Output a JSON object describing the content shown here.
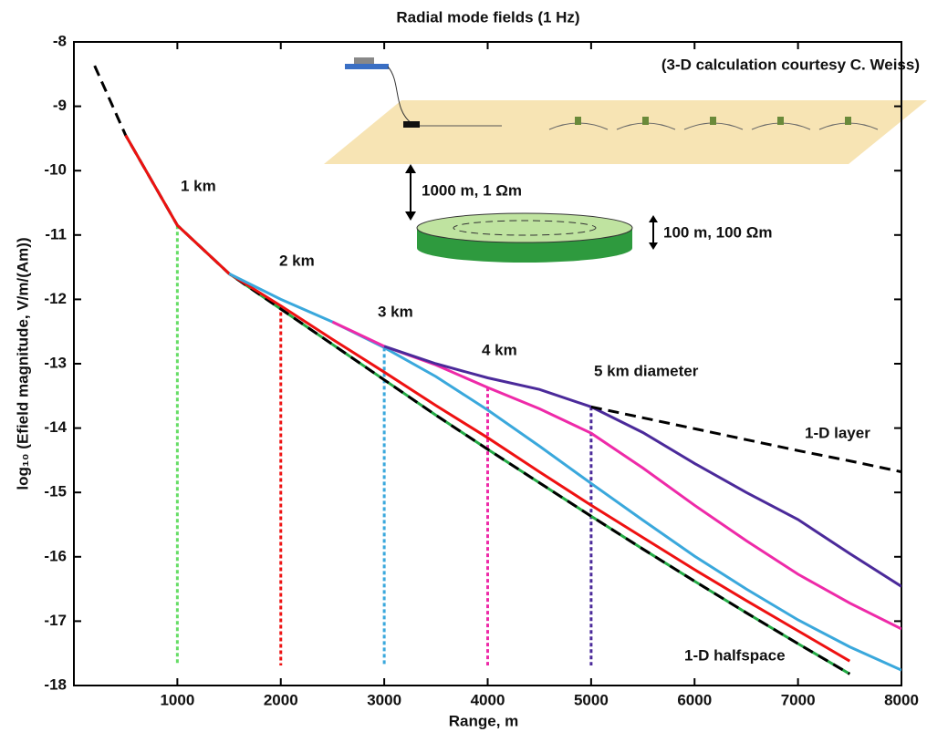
{
  "chart_data": {
    "type": "line",
    "title": "Radial mode fields (1 Hz)",
    "annotation": "(3-D calculation courtesy C. Weiss)",
    "xlabel": "Range, m",
    "ylabel": "log₁₀ (Efield magnitude, V/m/(Am))",
    "diagram_labels": [
      "1000 m, 1 Ωm",
      "100 m, 100 Ωm"
    ],
    "x": [
      200,
      500,
      1000,
      1500,
      2000,
      2500,
      3000,
      3500,
      4000,
      4500,
      5000,
      5500,
      6000,
      6500,
      7000,
      7500,
      8000
    ],
    "series": [
      {
        "name": "1 km",
        "color": "#22aa44",
        "dashed": false,
        "values": [
          null,
          -9.45,
          -10.85,
          -11.6,
          -12.15,
          -12.7,
          -13.25,
          -13.8,
          -14.33,
          -14.85,
          -15.37,
          -15.88,
          -16.38,
          -16.87,
          -17.35,
          -17.82,
          null
        ]
      },
      {
        "name": "1-D halfspace",
        "color": "#000000",
        "dashed": true,
        "values": [
          -8.37,
          -9.45,
          -10.85,
          -11.6,
          -12.15,
          -12.7,
          -13.25,
          -13.8,
          -14.33,
          -14.85,
          -15.37,
          -15.88,
          -16.38,
          -16.87,
          -17.35,
          -17.82,
          null
        ]
      },
      {
        "name": "2 km",
        "color": "#ee1111",
        "dashed": false,
        "values": [
          null,
          -9.45,
          -10.85,
          -11.6,
          -12.1,
          -12.62,
          -13.13,
          -13.65,
          -14.15,
          -14.68,
          -15.2,
          -15.7,
          -16.2,
          -16.68,
          -17.15,
          -17.62,
          null
        ]
      },
      {
        "name": "3 km",
        "color": "#3aa8dc",
        "dashed": false,
        "values": [
          null,
          null,
          null,
          -11.6,
          -12.0,
          -12.35,
          -12.75,
          -13.2,
          -13.72,
          -14.28,
          -14.86,
          -15.43,
          -15.99,
          -16.5,
          -16.98,
          -17.4,
          -17.76
        ]
      },
      {
        "name": "4 km",
        "color": "#ee2aa8",
        "dashed": false,
        "values": [
          null,
          null,
          null,
          null,
          null,
          -12.35,
          -12.73,
          -13.02,
          -13.37,
          -13.7,
          -14.08,
          -14.62,
          -15.2,
          -15.75,
          -16.27,
          -16.72,
          -17.12
        ]
      },
      {
        "name": "5 km diameter",
        "color": "#4b2a9a",
        "dashed": false,
        "values": [
          null,
          null,
          null,
          null,
          null,
          null,
          -12.73,
          -13.0,
          -13.22,
          -13.4,
          -13.67,
          -14.07,
          -14.55,
          -15.0,
          -15.42,
          -15.95,
          -16.46
        ]
      },
      {
        "name": "1-D layer",
        "color": "#000000",
        "dashed": true,
        "values": [
          null,
          null,
          null,
          null,
          null,
          null,
          null,
          null,
          null,
          null,
          -13.67,
          -13.84,
          -14.01,
          -14.18,
          -14.35,
          -14.51,
          -14.68
        ]
      }
    ],
    "diameter_lines": [
      {
        "x": 1000,
        "top": -10.85,
        "color": "#66dd66"
      },
      {
        "x": 2000,
        "top": -12.1,
        "color": "#ee1111"
      },
      {
        "x": 3000,
        "top": -12.75,
        "color": "#3aa8dc"
      },
      {
        "x": 4000,
        "top": -13.37,
        "color": "#ee2aa8"
      },
      {
        "x": 5000,
        "top": -13.67,
        "color": "#4b2a9a"
      }
    ],
    "xlim": [
      0,
      8000
    ],
    "ylim": [
      -18,
      -8
    ],
    "xticks": [
      1000,
      2000,
      3000,
      4000,
      5000,
      6000,
      7000,
      8000
    ],
    "yticks": [
      -8,
      -9,
      -10,
      -11,
      -12,
      -13,
      -14,
      -15,
      -16,
      -17,
      -18
    ]
  }
}
